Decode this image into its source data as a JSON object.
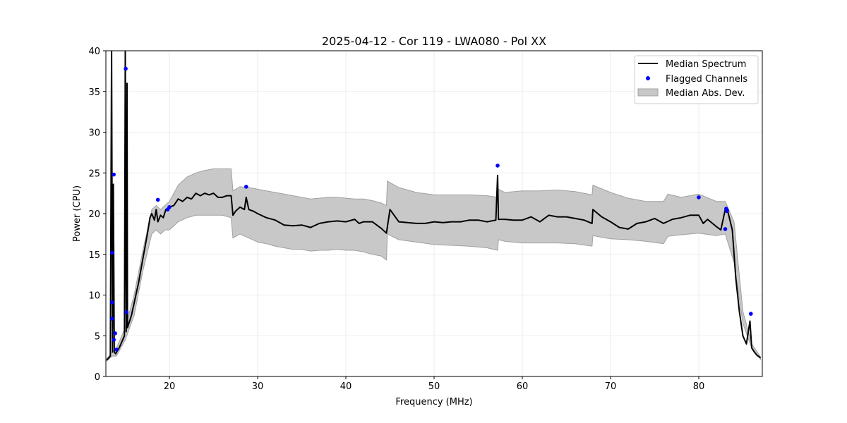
{
  "chart_data": {
    "type": "line",
    "title": "2025-04-12 - Cor 119 - LWA080 - Pol XX",
    "xlabel": "Frequency (MHz)",
    "ylabel": "Power (CPU)",
    "xlim": [
      12.8,
      87.2
    ],
    "ylim": [
      0,
      40
    ],
    "xticks": [
      20,
      30,
      40,
      50,
      60,
      70,
      80
    ],
    "xtick_labels": [
      "20",
      "30",
      "40",
      "50",
      "60",
      "70",
      "80"
    ],
    "yticks": [
      0,
      5,
      10,
      15,
      20,
      25,
      30,
      35,
      40
    ],
    "ytick_labels": [
      "0",
      "5",
      "10",
      "15",
      "20",
      "25",
      "30",
      "35",
      "40"
    ],
    "grid": true,
    "legend_position": "top-right",
    "legend": [
      "Median Spectrum",
      "Flagged Channels",
      "Median Abs. Dev."
    ],
    "colors": {
      "median": "#000000",
      "flagged": "#0000ff",
      "mad_fill": "#c8c8c8",
      "mad_edge": "#a0a0a0"
    },
    "series": [
      {
        "name": "Median Spectrum",
        "kind": "line",
        "x": [
          12.9,
          13.3,
          13.45,
          13.55,
          13.65,
          13.75,
          13.9,
          14.3,
          14.9,
          15.0,
          15.1,
          15.2,
          15.25,
          15.4,
          15.7,
          16.0,
          16.5,
          17.0,
          17.5,
          17.8,
          18.0,
          18.3,
          18.5,
          18.7,
          19.0,
          19.3,
          19.6,
          20.0,
          20.5,
          21.0,
          21.5,
          22.0,
          22.5,
          23.0,
          23.5,
          24.0,
          24.5,
          25.0,
          25.5,
          26.0,
          26.5,
          27.0,
          27.2,
          27.5,
          28.0,
          28.5,
          28.7,
          29.0,
          29.5,
          30.0,
          31.0,
          32.0,
          33.0,
          34.0,
          35.0,
          36.0,
          37.0,
          38.0,
          39.0,
          40.0,
          41.0,
          41.5,
          42.0,
          43.0,
          44.0,
          44.6,
          45.0,
          46.0,
          47.0,
          48.0,
          49.0,
          50.0,
          51.0,
          52.0,
          53.0,
          54.0,
          55.0,
          56.0,
          57.0,
          57.2,
          57.3,
          58.0,
          59.0,
          60.0,
          61.0,
          62.0,
          63.0,
          64.0,
          65.0,
          66.0,
          67.0,
          67.9,
          68.0,
          69.0,
          70.0,
          71.0,
          72.0,
          73.0,
          74.0,
          75.0,
          76.0,
          77.0,
          78.0,
          79.0,
          80.0,
          80.5,
          81.0,
          82.0,
          82.5,
          83.0,
          83.3,
          83.8,
          84.2,
          84.6,
          85.0,
          85.4,
          85.8,
          86.0,
          86.3,
          86.6,
          87.0
        ],
        "y": [
          2.0,
          2.5,
          40.0,
          3.0,
          23.6,
          3.0,
          2.8,
          3.5,
          5.0,
          40.0,
          5.5,
          36.0,
          6.0,
          6.5,
          7.5,
          9.0,
          11.5,
          14.5,
          17.5,
          19.5,
          20.0,
          19.2,
          20.5,
          19.0,
          19.8,
          19.5,
          20.5,
          20.8,
          21.0,
          21.8,
          21.5,
          22.0,
          21.8,
          22.5,
          22.2,
          22.5,
          22.3,
          22.5,
          22.0,
          22.0,
          22.2,
          22.2,
          19.8,
          20.3,
          20.8,
          20.5,
          22.0,
          20.5,
          20.3,
          20.0,
          19.5,
          19.2,
          18.6,
          18.5,
          18.6,
          18.3,
          18.8,
          19.0,
          19.1,
          19.0,
          19.3,
          18.8,
          19.0,
          19.0,
          18.2,
          17.6,
          20.5,
          19.0,
          18.9,
          18.8,
          18.8,
          19.0,
          18.9,
          19.0,
          19.0,
          19.2,
          19.2,
          19.0,
          19.2,
          24.7,
          19.3,
          19.3,
          19.2,
          19.2,
          19.6,
          19.0,
          19.8,
          19.6,
          19.6,
          19.4,
          19.2,
          18.8,
          20.5,
          19.6,
          19.0,
          18.3,
          18.1,
          18.8,
          19.0,
          19.4,
          18.8,
          19.3,
          19.5,
          19.8,
          19.8,
          18.8,
          19.3,
          18.4,
          18.0,
          20.5,
          20.2,
          18.0,
          12.0,
          8.0,
          5.0,
          4.0,
          6.8,
          3.5,
          3.0,
          2.6,
          2.3
        ]
      },
      {
        "name": "Flagged Channels",
        "kind": "scatter",
        "x": [
          13.5,
          13.5,
          13.5,
          13.7,
          13.7,
          13.85,
          14.0,
          15.05,
          15.15,
          18.7,
          19.8,
          20.0,
          28.7,
          57.2,
          80.0,
          83.1,
          83.2,
          83.2,
          83.0,
          85.9
        ],
        "y": [
          15.2,
          9.1,
          7.1,
          24.8,
          4.5,
          5.3,
          3.3,
          37.8,
          7.9,
          21.7,
          20.5,
          20.8,
          23.3,
          25.9,
          22.0,
          20.6,
          20.4,
          20.3,
          18.1,
          7.7
        ]
      },
      {
        "name": "Median Abs. Dev.",
        "kind": "band",
        "x": [
          12.9,
          13.5,
          14.0,
          15.0,
          16.0,
          17.0,
          18.0,
          18.5,
          19.0,
          19.5,
          20.0,
          21.0,
          22.0,
          23.0,
          24.0,
          25.0,
          26.0,
          27.0,
          27.2,
          28.0,
          29.0,
          30.0,
          31.0,
          32.0,
          33.0,
          34.0,
          35.0,
          36.0,
          37.0,
          38.0,
          39.0,
          40.0,
          41.0,
          42.0,
          43.0,
          44.0,
          44.6,
          44.7,
          46.0,
          48.0,
          50.0,
          52.0,
          54.0,
          56.0,
          57.2,
          57.3,
          58.0,
          60.0,
          62.0,
          64.0,
          66.0,
          67.9,
          68.0,
          70.0,
          72.0,
          74.0,
          76.0,
          76.5,
          78.0,
          80.0,
          82.0,
          83.0,
          84.0,
          85.0,
          86.0,
          87.0
        ],
        "lower": [
          1.9,
          2.5,
          2.5,
          4.5,
          7.5,
          13.0,
          17.5,
          18.0,
          17.5,
          18.0,
          18.0,
          19.0,
          19.5,
          19.8,
          19.8,
          19.8,
          19.8,
          19.5,
          17.0,
          17.5,
          17.0,
          16.5,
          16.3,
          16.0,
          15.8,
          15.6,
          15.6,
          15.4,
          15.5,
          15.5,
          15.6,
          15.5,
          15.5,
          15.3,
          15.0,
          14.8,
          14.3,
          17.5,
          16.8,
          16.5,
          16.2,
          16.1,
          16.0,
          15.8,
          15.5,
          16.8,
          16.6,
          16.4,
          16.4,
          16.4,
          16.3,
          16.0,
          17.3,
          16.9,
          16.8,
          16.6,
          16.3,
          17.2,
          17.4,
          17.6,
          17.3,
          17.5,
          14.0,
          6.5,
          3.5,
          2.1
        ],
        "upper": [
          2.2,
          3.0,
          3.5,
          6.0,
          10.0,
          15.5,
          20.5,
          21.0,
          20.5,
          21.0,
          21.5,
          23.5,
          24.5,
          25.0,
          25.3,
          25.5,
          25.5,
          25.5,
          22.8,
          23.3,
          23.2,
          23.0,
          22.8,
          22.6,
          22.4,
          22.2,
          22.0,
          21.8,
          21.9,
          22.0,
          22.0,
          21.9,
          21.8,
          21.8,
          21.6,
          21.3,
          21.0,
          24.0,
          23.2,
          22.6,
          22.3,
          22.3,
          22.3,
          22.2,
          22.0,
          23.0,
          22.6,
          22.8,
          22.8,
          22.9,
          22.7,
          22.3,
          23.5,
          22.6,
          21.9,
          21.5,
          21.5,
          22.4,
          22.0,
          22.4,
          21.5,
          21.5,
          19.0,
          8.0,
          4.0,
          2.4
        ]
      }
    ]
  }
}
